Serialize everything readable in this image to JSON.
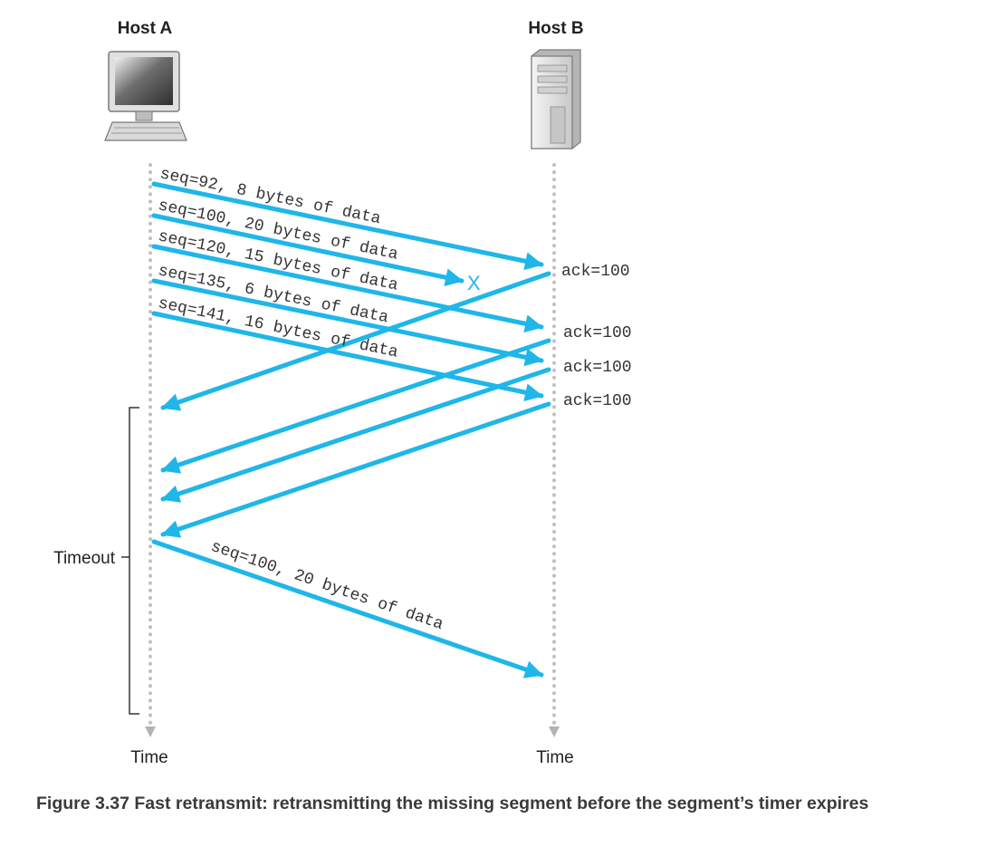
{
  "hosts": {
    "a_label": "Host A",
    "b_label": "Host B"
  },
  "time_labels": {
    "a": "Time",
    "b": "Time"
  },
  "timeout_label": "Timeout",
  "loss_marker": "X",
  "segments": [
    {
      "label": "seq=92, 8 bytes of data",
      "lost": false
    },
    {
      "label": "seq=100, 20 bytes of data",
      "lost": true
    },
    {
      "label": "seq=120, 15 bytes of data",
      "lost": false
    },
    {
      "label": "seq=135, 6 bytes of data",
      "lost": false
    },
    {
      "label": "seq=141, 16 bytes of data",
      "lost": false
    }
  ],
  "acks": [
    "ack=100",
    "ack=100",
    "ack=100",
    "ack=100"
  ],
  "retransmission": {
    "label": "seq=100, 20 bytes of data"
  },
  "caption": {
    "number": "Figure 3.37",
    "text": "Fast retransmit: retransmitting the missing segment before the segment’s timer expires"
  },
  "colors": {
    "arrow": "#1fb6ea",
    "timeline": "#c0c0c0",
    "bracket": "#333333"
  }
}
